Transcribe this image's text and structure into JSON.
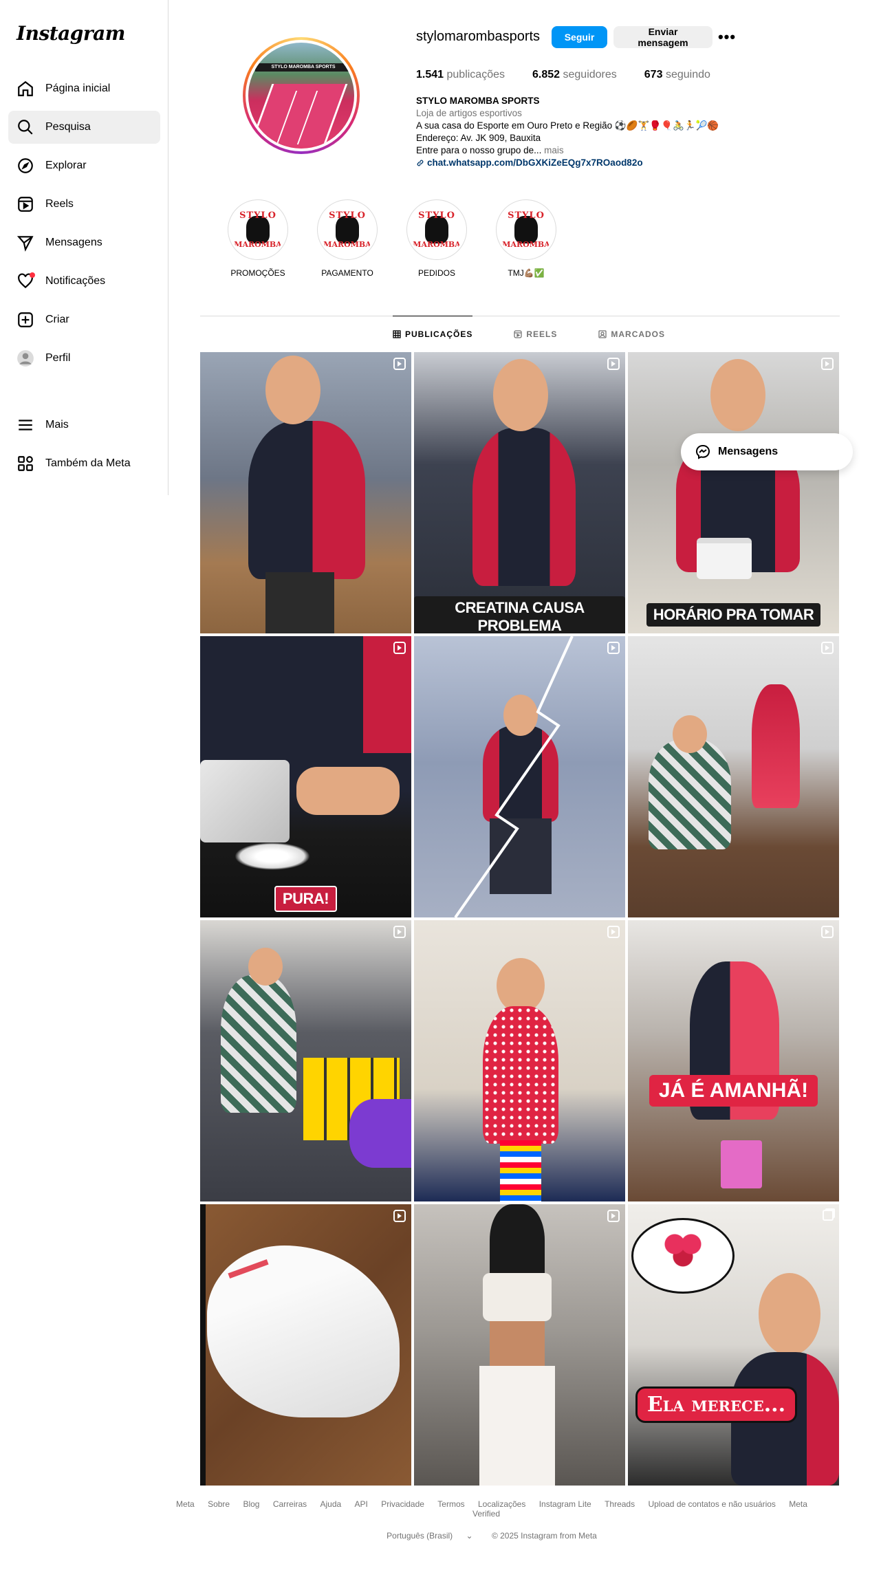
{
  "app": {
    "logo_text": "Instagram"
  },
  "sidebar": {
    "items": [
      {
        "label": "Página inicial",
        "icon": "home-icon"
      },
      {
        "label": "Pesquisa",
        "icon": "search-icon",
        "active": true
      },
      {
        "label": "Explorar",
        "icon": "compass-icon"
      },
      {
        "label": "Reels",
        "icon": "reels-icon"
      },
      {
        "label": "Mensagens",
        "icon": "send-icon"
      },
      {
        "label": "Notificações",
        "icon": "heart-icon",
        "badge": true
      },
      {
        "label": "Criar",
        "icon": "plus-square-icon"
      },
      {
        "label": "Perfil",
        "icon": "avatar-icon"
      }
    ],
    "bottom_items": [
      {
        "label": "Mais",
        "icon": "menu-icon"
      },
      {
        "label": "Também da Meta",
        "icon": "meta-apps-icon"
      }
    ]
  },
  "profile": {
    "username": "stylomarombasports",
    "follow_label": "Seguir",
    "message_label": "Enviar mensagem",
    "stats": {
      "posts_count": "1.541",
      "posts_label": "publicações",
      "followers_count": "6.852",
      "followers_label": "seguidores",
      "following_count": "673",
      "following_label": "seguindo"
    },
    "display_name": "STYLO MAROMBA SPORTS",
    "category": "Loja de artigos esportivos",
    "bio_line1": "A sua casa do Esporte em Ouro Preto e Região ⚽🏉🏋️🥊🎈🚴🏃🎾🏀",
    "bio_line2": "Endereço: Av. JK 909, Bauxita",
    "bio_line3": "Entre para o nosso grupo de...",
    "bio_more": "mais",
    "link": "chat.whatsapp.com/DbGXKiZeEQg7x7ROaod82o",
    "avatar_sign": "STYLO MAROMBA SPORTS"
  },
  "highlights": [
    {
      "label": "PROMOÇÕES",
      "top": "STYLO",
      "bottom": "MAROMBA"
    },
    {
      "label": "PAGAMENTO",
      "top": "STYLO",
      "bottom": "MAROMBA"
    },
    {
      "label": "PEDIDOS",
      "top": "STYLO",
      "bottom": "MAROMBA"
    },
    {
      "label": "TMJ💪🏽✅",
      "top": "STYLO",
      "bottom": "MAROMBA"
    }
  ],
  "tabs": [
    {
      "label": "PUBLICAÇÕES",
      "active": true
    },
    {
      "label": "REELS"
    },
    {
      "label": "MARCADOS"
    }
  ],
  "posts": {
    "p2_caption": "CREATINA CAUSA PROBLEMA",
    "p3_caption": "HORÁRIO PRA TOMAR",
    "p4_caption": "PURA!",
    "p9_caption": "JÁ É AMANHÃ!",
    "p12_caption": "Ela merece..."
  },
  "floating_messages": {
    "label": "Mensagens"
  },
  "footer": {
    "links": [
      "Meta",
      "Sobre",
      "Blog",
      "Carreiras",
      "Ajuda",
      "API",
      "Privacidade",
      "Termos",
      "Localizações",
      "Instagram Lite",
      "Threads",
      "Upload de contatos e não usuários",
      "Meta Verified"
    ],
    "language": "Português (Brasil)",
    "copyright": "© 2025 Instagram from Meta"
  },
  "colors": {
    "accent": "#0095f6",
    "link": "#00376b",
    "badge": "#ff3040"
  }
}
